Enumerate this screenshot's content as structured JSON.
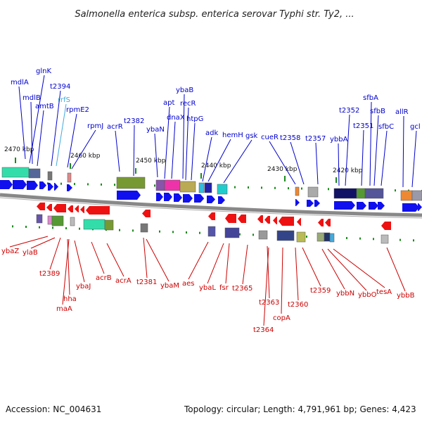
{
  "title": "Salmonella enterica subsp. enterica serovar Typhi str. Ty2, ...",
  "footer": {
    "accession": "Accession: NC_004631",
    "topology": "Topology: circular; Length: 4,791,961 bp; Genes: 4,423"
  },
  "colors": {
    "upper_label": "#0000cc",
    "lower_label": "#cc0000",
    "rrna_label": "#44aadd",
    "backbone": "#888888",
    "upper_arrow": "#1010ee",
    "lower_arrow": "#ee1111",
    "tick": "#1a8a1a"
  },
  "scale_ticks": [
    "2470 kbp",
    "2460 kbp",
    "2450 kbp",
    "2440 kbp",
    "2430 kbp",
    "2420 kbp"
  ],
  "upper_genes": [
    "mdlA",
    "glnK",
    "mdlB",
    "amtB",
    "t2394",
    "rrfS",
    "rpmE2",
    "rpmJ",
    "acrR",
    "t2382",
    "ybaN",
    "apt",
    "ybaB",
    "dnaX",
    "recR",
    "htpG",
    "adk",
    "hemH",
    "gsk",
    "cueR",
    "t2358",
    "t2357",
    "ybbA",
    "t2352",
    "sfbA",
    "t2351",
    "sfbB",
    "sfbC",
    "allR",
    "gcl"
  ],
  "lower_genes": [
    "ybaZ",
    "ylaB",
    "t2389",
    "hha",
    "maA",
    "ybaJ",
    "acrB",
    "acrA",
    "t2381",
    "ybaM",
    "aes",
    "ybaL",
    "fsr",
    "t2365",
    "t2363",
    "t2364",
    "copA",
    "t2360",
    "t2359",
    "ybbN",
    "ybbO",
    "tesA",
    "ybbB"
  ]
}
